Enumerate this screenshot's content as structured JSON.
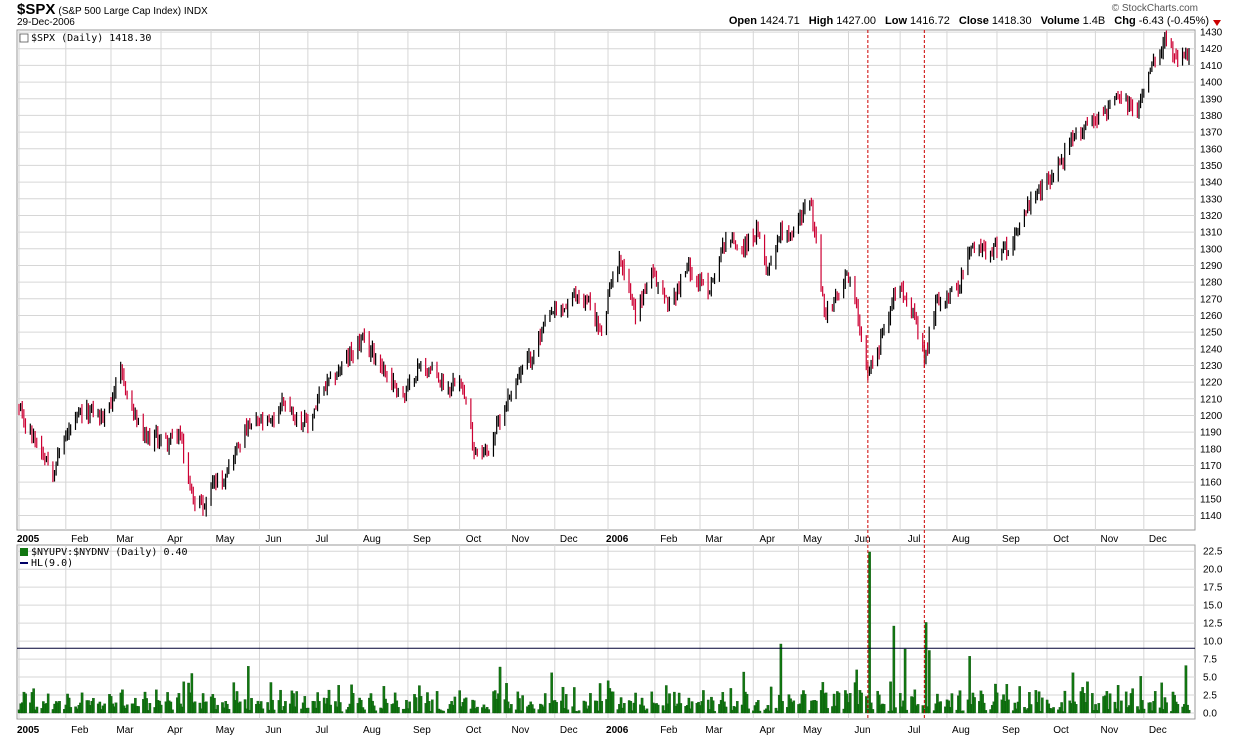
{
  "header": {
    "symbol": "$SPX",
    "description": "(S&P 500 Large Cap Index)",
    "exchange": "INDX",
    "date": "29-Dec-2006",
    "brand": "© StockCharts.com",
    "open_label": "Open",
    "open": "1424.71",
    "high_label": "High",
    "high": "1427.00",
    "low_label": "Low",
    "low": "1416.72",
    "close_label": "Close",
    "close": "1418.30",
    "volume_label": "Volume",
    "volume": "1.4B",
    "chg_label": "Chg",
    "chg": "-6.43 (-0.45%)"
  },
  "colors": {
    "up": "#000000",
    "down": "#cc0033",
    "bars": "#117711",
    "bar_edge": "#0a4a0a",
    "grid": "#d6d6d6",
    "marker": "#cc0000"
  },
  "chart_data": [
    {
      "type": "candlestick",
      "legend": "$SPX (Daily) 1418.30",
      "ylim": [
        1133,
        1433
      ],
      "y_ticks": [
        1140,
        1150,
        1160,
        1170,
        1180,
        1190,
        1200,
        1210,
        1220,
        1230,
        1240,
        1250,
        1260,
        1270,
        1280,
        1290,
        1300,
        1310,
        1320,
        1330,
        1340,
        1350,
        1360,
        1370,
        1380,
        1390,
        1400,
        1410,
        1420,
        1430
      ],
      "x_ticks": [
        {
          "label": "2005",
          "bold": true,
          "date": "2005-01-03"
        },
        {
          "label": "Feb",
          "date": "2005-02-01"
        },
        {
          "label": "Mar",
          "date": "2005-03-01"
        },
        {
          "label": "Apr",
          "date": "2005-04-01"
        },
        {
          "label": "May",
          "date": "2005-05-02"
        },
        {
          "label": "Jun",
          "date": "2005-06-01"
        },
        {
          "label": "Jul",
          "date": "2005-07-01"
        },
        {
          "label": "Aug",
          "date": "2005-08-01"
        },
        {
          "label": "Sep",
          "date": "2005-09-01"
        },
        {
          "label": "Oct",
          "date": "2005-10-03"
        },
        {
          "label": "Nov",
          "date": "2005-11-01"
        },
        {
          "label": "Dec",
          "date": "2005-12-01"
        },
        {
          "label": "2006",
          "bold": true,
          "date": "2006-01-03"
        },
        {
          "label": "Feb",
          "date": "2006-02-01"
        },
        {
          "label": "Mar",
          "date": "2006-03-01"
        },
        {
          "label": "Apr",
          "date": "2006-04-03"
        },
        {
          "label": "May",
          "date": "2006-05-01"
        },
        {
          "label": "Jun",
          "date": "2006-06-01"
        },
        {
          "label": "Jul",
          "date": "2006-07-03"
        },
        {
          "label": "Aug",
          "date": "2006-08-01"
        },
        {
          "label": "Sep",
          "date": "2006-09-01"
        },
        {
          "label": "Oct",
          "date": "2006-10-02"
        },
        {
          "label": "Nov",
          "date": "2006-11-01"
        },
        {
          "label": "Dec",
          "date": "2006-12-01"
        }
      ],
      "x_start": "2005-01-03",
      "x_end": "2006-12-29",
      "markers": [
        "2006-06-13",
        "2006-07-18"
      ],
      "close_path": [
        [
          "2005-01-03",
          1202
        ],
        [
          "2005-01-10",
          1190
        ],
        [
          "2005-01-20",
          1175
        ],
        [
          "2005-01-24",
          1167
        ],
        [
          "2005-02-01",
          1188
        ],
        [
          "2005-02-10",
          1200
        ],
        [
          "2005-02-18",
          1203
        ],
        [
          "2005-02-24",
          1198
        ],
        [
          "2005-03-07",
          1225
        ],
        [
          "2005-03-14",
          1204
        ],
        [
          "2005-03-22",
          1185
        ],
        [
          "2005-03-30",
          1187
        ],
        [
          "2005-04-05",
          1184
        ],
        [
          "2005-04-12",
          1190
        ],
        [
          "2005-04-20",
          1152
        ],
        [
          "2005-04-28",
          1145
        ],
        [
          "2005-05-02",
          1160
        ],
        [
          "2005-05-09",
          1162
        ],
        [
          "2005-05-16",
          1176
        ],
        [
          "2005-05-24",
          1192
        ],
        [
          "2005-06-01",
          1196
        ],
        [
          "2005-06-08",
          1195
        ],
        [
          "2005-06-16",
          1210
        ],
        [
          "2005-06-23",
          1200
        ],
        [
          "2005-07-01",
          1194
        ],
        [
          "2005-07-08",
          1211
        ],
        [
          "2005-07-18",
          1225
        ],
        [
          "2005-07-28",
          1237
        ],
        [
          "2005-08-03",
          1245
        ],
        [
          "2005-08-11",
          1237
        ],
        [
          "2005-08-22",
          1220
        ],
        [
          "2005-08-30",
          1212
        ],
        [
          "2005-09-08",
          1230
        ],
        [
          "2005-09-15",
          1227
        ],
        [
          "2005-09-26",
          1216
        ],
        [
          "2005-10-03",
          1226
        ],
        [
          "2005-10-12",
          1180
        ],
        [
          "2005-10-20",
          1178
        ],
        [
          "2005-10-28",
          1198
        ],
        [
          "2005-11-07",
          1222
        ],
        [
          "2005-11-16",
          1235
        ],
        [
          "2005-11-29",
          1262
        ],
        [
          "2005-12-05",
          1262
        ],
        [
          "2005-12-14",
          1272
        ],
        [
          "2005-12-22",
          1268
        ],
        [
          "2005-12-30",
          1248
        ],
        [
          "2006-01-06",
          1285
        ],
        [
          "2006-01-11",
          1294
        ],
        [
          "2006-01-20",
          1262
        ],
        [
          "2006-01-30",
          1285
        ],
        [
          "2006-02-10",
          1266
        ],
        [
          "2006-02-22",
          1290
        ],
        [
          "2006-02-28",
          1280
        ],
        [
          "2006-03-07",
          1276
        ],
        [
          "2006-03-17",
          1307
        ],
        [
          "2006-03-28",
          1300
        ],
        [
          "2006-04-05",
          1310
        ],
        [
          "2006-04-12",
          1287
        ],
        [
          "2006-04-20",
          1312
        ],
        [
          "2006-04-28",
          1310
        ],
        [
          "2006-05-05",
          1326
        ],
        [
          "2006-05-09",
          1325
        ],
        [
          "2006-05-17",
          1262
        ],
        [
          "2006-05-25",
          1270
        ],
        [
          "2006-06-01",
          1285
        ],
        [
          "2006-06-08",
          1255
        ],
        [
          "2006-06-13",
          1225
        ],
        [
          "2006-06-20",
          1242
        ],
        [
          "2006-06-29",
          1272
        ],
        [
          "2006-07-03",
          1280
        ],
        [
          "2006-07-10",
          1265
        ],
        [
          "2006-07-18",
          1232
        ],
        [
          "2006-07-25",
          1268
        ],
        [
          "2006-08-07",
          1275
        ],
        [
          "2006-08-16",
          1300
        ],
        [
          "2006-08-28",
          1300
        ],
        [
          "2006-09-08",
          1300
        ],
        [
          "2006-09-20",
          1325
        ],
        [
          "2006-09-29",
          1336
        ],
        [
          "2006-10-09",
          1350
        ],
        [
          "2006-10-18",
          1365
        ],
        [
          "2006-10-27",
          1376
        ],
        [
          "2006-11-06",
          1381
        ],
        [
          "2006-11-15",
          1390
        ],
        [
          "2006-11-27",
          1382
        ],
        [
          "2006-12-05",
          1411
        ],
        [
          "2006-12-15",
          1427
        ],
        [
          "2006-12-22",
          1410
        ],
        [
          "2006-12-29",
          1418
        ]
      ]
    },
    {
      "type": "bar",
      "legend": "$NYUPV:$NYDNV (Daily) 0.40",
      "legend2": "HL(9.0)",
      "ylim": [
        0,
        22.5
      ],
      "y_ticks": [
        0.0,
        2.5,
        5.0,
        7.5,
        10.0,
        12.5,
        15.0,
        17.5,
        20.0,
        22.5
      ],
      "hline": 9.0,
      "spikes": [
        [
          "2005-04-20",
          5.5
        ],
        [
          "2005-05-25",
          6.5
        ],
        [
          "2005-10-28",
          6.4
        ],
        [
          "2005-11-29",
          5.6
        ],
        [
          "2006-01-03",
          4.5
        ],
        [
          "2006-03-28",
          5.7
        ],
        [
          "2006-04-20",
          9.6
        ],
        [
          "2006-06-06",
          6.0
        ],
        [
          "2006-06-14",
          22.4
        ],
        [
          "2006-06-29",
          12.1
        ],
        [
          "2006-07-06",
          8.9
        ],
        [
          "2006-07-19",
          12.6
        ],
        [
          "2006-07-21",
          8.7
        ],
        [
          "2006-08-15",
          7.9
        ],
        [
          "2006-10-18",
          5.6
        ],
        [
          "2006-11-29",
          5.1
        ],
        [
          "2006-12-12",
          4.2
        ],
        [
          "2006-12-27",
          6.6
        ],
        [
          "2006-12-29",
          0.4
        ]
      ]
    }
  ],
  "x_labels": [
    "2005",
    "Feb",
    "Mar",
    "Apr",
    "May",
    "Jun",
    "Jul",
    "Aug",
    "Sep",
    "Oct",
    "Nov",
    "Dec",
    "2006",
    "Feb",
    "Mar",
    "Apr",
    "May",
    "Jun",
    "Jul",
    "Aug",
    "Sep",
    "Oct",
    "Nov",
    "Dec"
  ]
}
